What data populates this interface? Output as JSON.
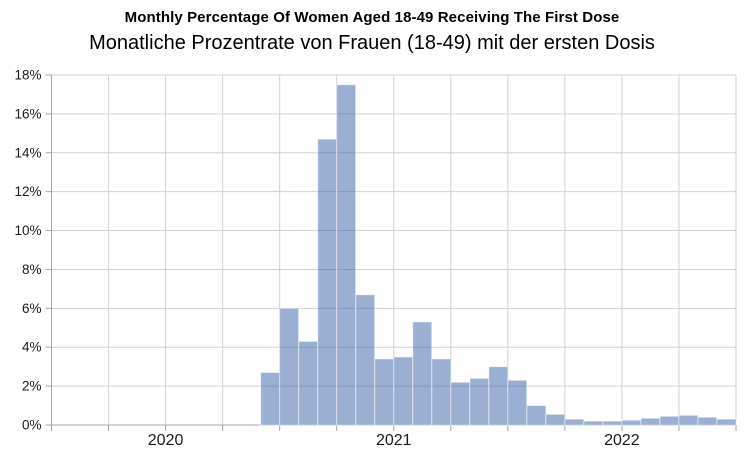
{
  "header": {
    "title": "Monthly Percentage Of Women Aged 18-49 Receiving The First Dose",
    "subtitle": "Monatliche Prozentrate von Frauen (18-49) mit der ersten Dosis"
  },
  "colors": {
    "bar_fill": "rgba(47,88,161,0.48)",
    "bar_edge": "rgba(255,255,255,0.55)",
    "gridline": "#cfd2d6",
    "axis_line": "#a6a6a6",
    "tick": "#a6a6a6",
    "label_text": "#1a1a1a"
  },
  "chart_data": {
    "type": "bar",
    "title": "Monthly Percentage Of Women Aged 18-49 Receiving The First Dose",
    "subtitle": "Monatliche Prozentrate von Frauen (18-49) mit der ersten Dosis",
    "xlabel": "",
    "ylabel": "",
    "ylim": [
      0,
      18
    ],
    "y_tick_step": 2,
    "grid": true,
    "legend": "none",
    "x_axis": {
      "range_months_total": 36,
      "range_start": "Jan 2020",
      "range_end": "Jan 2023",
      "gridline_every_months": 3,
      "year_labels": [
        {
          "label": "2020",
          "month_index": 6
        },
        {
          "label": "2021",
          "month_index": 18
        },
        {
          "label": "2022",
          "month_index": 30
        }
      ]
    },
    "y_ticks": [
      {
        "value": 0,
        "label": "0%"
      },
      {
        "value": 2,
        "label": "2%"
      },
      {
        "value": 4,
        "label": "4%"
      },
      {
        "value": 6,
        "label": "6%"
      },
      {
        "value": 8,
        "label": "8%"
      },
      {
        "value": 10,
        "label": "10%"
      },
      {
        "value": 12,
        "label": "12%"
      },
      {
        "value": 14,
        "label": "14%"
      },
      {
        "value": 16,
        "label": "16%"
      },
      {
        "value": 18,
        "label": "18%"
      }
    ],
    "series_start_month_index": 11,
    "categories": [
      "Dec 2020",
      "Jan 2021",
      "Feb 2021",
      "Mar 2021",
      "Apr 2021",
      "May 2021",
      "Jun 2021",
      "Jul 2021",
      "Aug 2021",
      "Sep 2021",
      "Oct 2021",
      "Nov 2021",
      "Dec 2021",
      "Jan 2022",
      "Feb 2022",
      "Mar 2022",
      "Apr 2022",
      "May 2022",
      "Jun 2022",
      "Jul 2022",
      "Aug 2022",
      "Sep 2022",
      "Oct 2022",
      "Nov 2022",
      "Dec 2022"
    ],
    "values": [
      2.7,
      6.0,
      4.3,
      14.7,
      17.5,
      6.7,
      3.4,
      3.5,
      5.3,
      3.4,
      2.2,
      2.4,
      3.0,
      2.3,
      1.0,
      0.55,
      0.3,
      0.2,
      0.2,
      0.25,
      0.35,
      0.45,
      0.5,
      0.4,
      0.3
    ],
    "unit": "%"
  }
}
